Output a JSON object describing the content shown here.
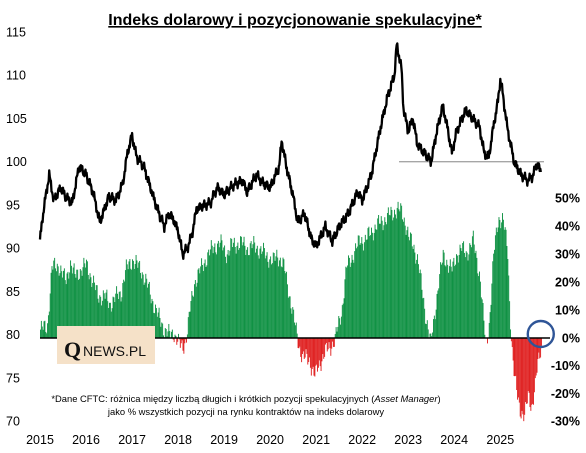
{
  "chart_data": {
    "type": "bar",
    "title": "Indeks dolarowy i pozycjonowanie spekulacyjne*",
    "x_ticks": [
      "2015",
      "2016",
      "2017",
      "2018",
      "2019",
      "2020",
      "2021",
      "2022",
      "2023",
      "2024",
      "2025"
    ],
    "left_axis": {
      "ylim": [
        70,
        115
      ],
      "ticks": [
        "70",
        "75",
        "80",
        "85",
        "90",
        "95",
        "100",
        "105",
        "110",
        "115"
      ]
    },
    "right_axis": {
      "ylim": [
        -30,
        50
      ],
      "ticks": [
        "-30%",
        "-20%",
        "-10%",
        "0%",
        "10%",
        "20%",
        "30%",
        "40%",
        "50%"
      ]
    },
    "reference_line": {
      "value": 100,
      "from": 2022.8,
      "to": 2025.95
    },
    "colors": {
      "positive": "#119245",
      "negative": "#e02323",
      "line": "#000000",
      "reference": "#a6a6a6",
      "circle": "#2f5597"
    },
    "series": [
      {
        "type": "line",
        "axis": "left",
        "points": [
          [
            2015.0,
            91
          ],
          [
            2015.08,
            94.5
          ],
          [
            2015.2,
            98.5
          ],
          [
            2015.3,
            95.5
          ],
          [
            2015.45,
            97
          ],
          [
            2015.55,
            96
          ],
          [
            2015.7,
            95.2
          ],
          [
            2015.85,
            99.5
          ],
          [
            2016.0,
            98.5
          ],
          [
            2016.15,
            96.5
          ],
          [
            2016.3,
            93
          ],
          [
            2016.5,
            96
          ],
          [
            2016.65,
            95.5
          ],
          [
            2016.8,
            97.5
          ],
          [
            2016.9,
            101
          ],
          [
            2017.0,
            103
          ],
          [
            2017.1,
            100.5
          ],
          [
            2017.25,
            99.5
          ],
          [
            2017.4,
            97
          ],
          [
            2017.55,
            94.5
          ],
          [
            2017.7,
            92.5
          ],
          [
            2017.8,
            94
          ],
          [
            2017.9,
            93.3
          ],
          [
            2018.0,
            92
          ],
          [
            2018.1,
            89.3
          ],
          [
            2018.2,
            90
          ],
          [
            2018.3,
            91.5
          ],
          [
            2018.4,
            94.5
          ],
          [
            2018.5,
            94.8
          ],
          [
            2018.7,
            95.2
          ],
          [
            2018.85,
            97
          ],
          [
            2019.0,
            96.2
          ],
          [
            2019.2,
            97.3
          ],
          [
            2019.4,
            97.8
          ],
          [
            2019.5,
            96.5
          ],
          [
            2019.7,
            98.5
          ],
          [
            2019.85,
            97.5
          ],
          [
            2020.0,
            97
          ],
          [
            2020.2,
            99.5
          ],
          [
            2020.25,
            102.5
          ],
          [
            2020.35,
            99.5
          ],
          [
            2020.5,
            96
          ],
          [
            2020.6,
            93
          ],
          [
            2020.75,
            94
          ],
          [
            2020.9,
            91
          ],
          [
            2021.0,
            90.2
          ],
          [
            2021.2,
            92.5
          ],
          [
            2021.35,
            90.8
          ],
          [
            2021.5,
            92.5
          ],
          [
            2021.7,
            94
          ],
          [
            2021.9,
            96.5
          ],
          [
            2022.0,
            95.5
          ],
          [
            2022.2,
            98.5
          ],
          [
            2022.4,
            104
          ],
          [
            2022.55,
            107.5
          ],
          [
            2022.7,
            110
          ],
          [
            2022.75,
            113.5
          ],
          [
            2022.85,
            111
          ],
          [
            2022.9,
            106
          ],
          [
            2023.0,
            103.5
          ],
          [
            2023.1,
            105
          ],
          [
            2023.2,
            102
          ],
          [
            2023.35,
            101
          ],
          [
            2023.5,
            100
          ],
          [
            2023.6,
            103
          ],
          [
            2023.75,
            106.5
          ],
          [
            2023.85,
            104
          ],
          [
            2023.95,
            101
          ],
          [
            2024.05,
            103.5
          ],
          [
            2024.25,
            106
          ],
          [
            2024.4,
            105
          ],
          [
            2024.55,
            104
          ],
          [
            2024.65,
            101
          ],
          [
            2024.75,
            100.5
          ],
          [
            2024.85,
            104
          ],
          [
            2024.95,
            107
          ],
          [
            2025.0,
            109.5
          ],
          [
            2025.05,
            108
          ],
          [
            2025.15,
            104
          ],
          [
            2025.3,
            100
          ],
          [
            2025.45,
            98.5
          ],
          [
            2025.6,
            97.8
          ],
          [
            2025.7,
            98.3
          ],
          [
            2025.8,
            99.8
          ],
          [
            2025.88,
            98.8
          ]
        ]
      },
      {
        "type": "bar",
        "axis": "right",
        "points": [
          [
            2015.0,
            3
          ],
          [
            2015.15,
            4
          ],
          [
            2015.25,
            25
          ],
          [
            2015.4,
            26
          ],
          [
            2015.55,
            20
          ],
          [
            2015.65,
            27
          ],
          [
            2015.75,
            22
          ],
          [
            2015.85,
            24
          ],
          [
            2016.0,
            26
          ],
          [
            2016.1,
            22
          ],
          [
            2016.25,
            15
          ],
          [
            2016.4,
            15
          ],
          [
            2016.5,
            12
          ],
          [
            2016.6,
            14
          ],
          [
            2016.75,
            16
          ],
          [
            2016.85,
            24
          ],
          [
            2017.0,
            28
          ],
          [
            2017.1,
            26
          ],
          [
            2017.2,
            24
          ],
          [
            2017.3,
            20
          ],
          [
            2017.4,
            15
          ],
          [
            2017.55,
            8
          ],
          [
            2017.7,
            3
          ],
          [
            2017.8,
            1
          ],
          [
            2017.9,
            2
          ],
          [
            2018.0,
            -2
          ],
          [
            2018.05,
            -3
          ],
          [
            2018.1,
            -3
          ],
          [
            2018.15,
            -1
          ],
          [
            2018.2,
            3
          ],
          [
            2018.25,
            10
          ],
          [
            2018.35,
            20
          ],
          [
            2018.5,
            25
          ],
          [
            2018.65,
            30
          ],
          [
            2018.8,
            33
          ],
          [
            2018.9,
            34
          ],
          [
            2019.05,
            30
          ],
          [
            2019.15,
            33
          ],
          [
            2019.35,
            34
          ],
          [
            2019.5,
            32
          ],
          [
            2019.65,
            33
          ],
          [
            2019.8,
            31
          ],
          [
            2019.95,
            29
          ],
          [
            2020.05,
            27
          ],
          [
            2020.15,
            30
          ],
          [
            2020.3,
            25
          ],
          [
            2020.45,
            12
          ],
          [
            2020.55,
            3
          ],
          [
            2020.62,
            -3
          ],
          [
            2020.7,
            -7
          ],
          [
            2020.85,
            -8
          ],
          [
            2020.92,
            -12
          ],
          [
            2020.97,
            -14
          ],
          [
            2021.02,
            -11
          ],
          [
            2021.1,
            -8
          ],
          [
            2021.2,
            -5
          ],
          [
            2021.3,
            -3
          ],
          [
            2021.35,
            -2
          ],
          [
            2021.4,
            -1
          ],
          [
            2021.45,
            3
          ],
          [
            2021.55,
            10
          ],
          [
            2021.65,
            25
          ],
          [
            2021.8,
            30
          ],
          [
            2021.95,
            35
          ],
          [
            2022.05,
            35
          ],
          [
            2022.15,
            37
          ],
          [
            2022.3,
            40
          ],
          [
            2022.45,
            42
          ],
          [
            2022.6,
            44
          ],
          [
            2022.75,
            46
          ],
          [
            2022.85,
            45
          ],
          [
            2022.95,
            40
          ],
          [
            2023.0,
            36
          ],
          [
            2023.1,
            33
          ],
          [
            2023.2,
            28
          ],
          [
            2023.35,
            10
          ],
          [
            2023.42,
            4
          ],
          [
            2023.48,
            -2
          ],
          [
            2023.55,
            6
          ],
          [
            2023.65,
            20
          ],
          [
            2023.75,
            29
          ],
          [
            2023.85,
            27
          ],
          [
            2023.95,
            24
          ],
          [
            2024.05,
            30
          ],
          [
            2024.15,
            32
          ],
          [
            2024.25,
            30
          ],
          [
            2024.4,
            35
          ],
          [
            2024.55,
            22
          ],
          [
            2024.62,
            8
          ],
          [
            2024.68,
            -3
          ],
          [
            2024.75,
            5
          ],
          [
            2024.85,
            30
          ],
          [
            2024.95,
            43
          ],
          [
            2025.05,
            42
          ],
          [
            2025.15,
            32
          ],
          [
            2025.2,
            10
          ],
          [
            2025.25,
            -5
          ],
          [
            2025.3,
            -15
          ],
          [
            2025.38,
            -22
          ],
          [
            2025.45,
            -27
          ],
          [
            2025.52,
            -29
          ],
          [
            2025.6,
            -20
          ],
          [
            2025.68,
            -25
          ],
          [
            2025.75,
            -18
          ],
          [
            2025.8,
            -10
          ],
          [
            2025.85,
            -5
          ],
          [
            2025.9,
            -2
          ]
        ]
      }
    ]
  },
  "note": {
    "line1_before": "*Dane CFTC: różnica między liczbą długich i krótkich pozycji spekulacyjnych (",
    "line1_italic": "Asset Manager",
    "line1_after": ")",
    "line2": "jako % wszystkich pozycji na rynku kontraktów na indeks dolarowy"
  },
  "logo": {
    "initial": "Q",
    "rest": "NEWS.PL"
  }
}
